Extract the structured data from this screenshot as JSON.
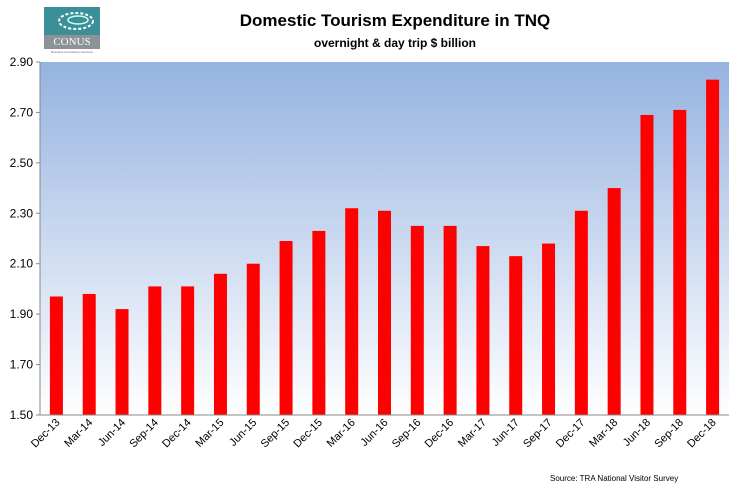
{
  "logo": {
    "text": "CONUS",
    "subtext": "Business Consultancy Services"
  },
  "chart_data": {
    "type": "bar",
    "title": "Domestic Tourism Expenditure in TNQ",
    "subtitle": "overnight & day trip $ billion",
    "source": "Source: TRA National Visitor Survey",
    "categories": [
      "Dec-13",
      "Mar-14",
      "Jun-14",
      "Sep-14",
      "Dec-14",
      "Mar-15",
      "Jun-15",
      "Sep-15",
      "Dec-15",
      "Mar-16",
      "Jun-16",
      "Sep-16",
      "Dec-16",
      "Mar-17",
      "Jun-17",
      "Sep-17",
      "Dec-17",
      "Mar-18",
      "Jun-18",
      "Sep-18",
      "Dec-18"
    ],
    "values": [
      1.97,
      1.98,
      1.92,
      2.01,
      2.01,
      2.06,
      2.1,
      2.19,
      2.23,
      2.32,
      2.31,
      2.25,
      2.25,
      2.17,
      2.13,
      2.18,
      2.31,
      2.4,
      2.69,
      2.71,
      2.83
    ],
    "ylim": [
      1.5,
      2.9
    ],
    "yticks": [
      "1.50",
      "1.70",
      "1.90",
      "2.10",
      "2.30",
      "2.50",
      "2.70",
      "2.90"
    ],
    "bar_color": "#FF0000",
    "background_gradient": [
      "#95B3E0",
      "#FFFFFF"
    ],
    "grid": false,
    "legend": "none"
  }
}
